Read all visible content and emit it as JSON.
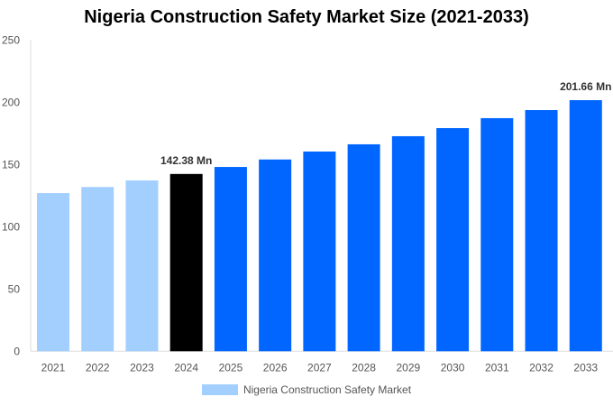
{
  "chart_data": {
    "type": "bar",
    "title": "Nigeria Construction Safety Market Size (2021-2033)",
    "categories": [
      "2021",
      "2022",
      "2023",
      "2024",
      "2025",
      "2026",
      "2027",
      "2028",
      "2029",
      "2030",
      "2031",
      "2032",
      "2033"
    ],
    "series": [
      {
        "name": "Nigeria Construction Safety Market",
        "values": [
          127.0,
          131.9,
          137.2,
          142.38,
          148.0,
          154.0,
          160.4,
          166.2,
          172.7,
          179.2,
          187.2,
          193.7,
          201.66
        ]
      }
    ],
    "data_labels": [
      {
        "category": "2024",
        "text": "142.38 Mn"
      },
      {
        "category": "2033",
        "text": "201.66 Mn"
      }
    ],
    "ylim": [
      0,
      250
    ],
    "yticks": [
      0,
      50,
      100,
      150,
      200,
      250
    ],
    "xlabel": "",
    "ylabel": "",
    "grid": false,
    "legend_position": "bottom",
    "colors": {
      "historical": "#a3cfff",
      "current": "#000000",
      "forecast": "#0066ff"
    }
  }
}
